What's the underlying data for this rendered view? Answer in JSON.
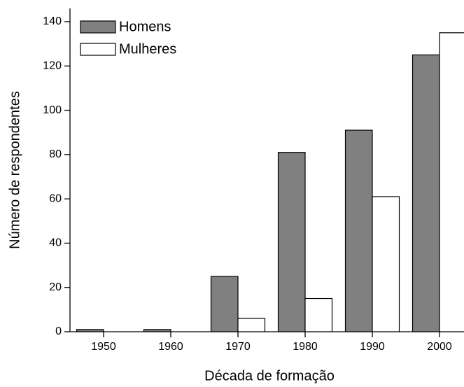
{
  "chart_data": {
    "type": "bar",
    "x_label": "Década de formação",
    "y_label": "Número de respondentes",
    "categories": [
      "1950",
      "1960",
      "1970",
      "1980",
      "1990",
      "2000"
    ],
    "series": [
      {
        "name": "Homens",
        "color": "#808080",
        "values": [
          1,
          1,
          25,
          81,
          91,
          125
        ]
      },
      {
        "name": "Mulheres",
        "color": "#ffffff",
        "values": [
          0,
          0,
          6,
          15,
          61,
          135
        ]
      }
    ],
    "ylim": [
      0,
      146
    ],
    "yticks": [
      0,
      20,
      40,
      60,
      80,
      100,
      120,
      140
    ],
    "legend": "upper left"
  }
}
